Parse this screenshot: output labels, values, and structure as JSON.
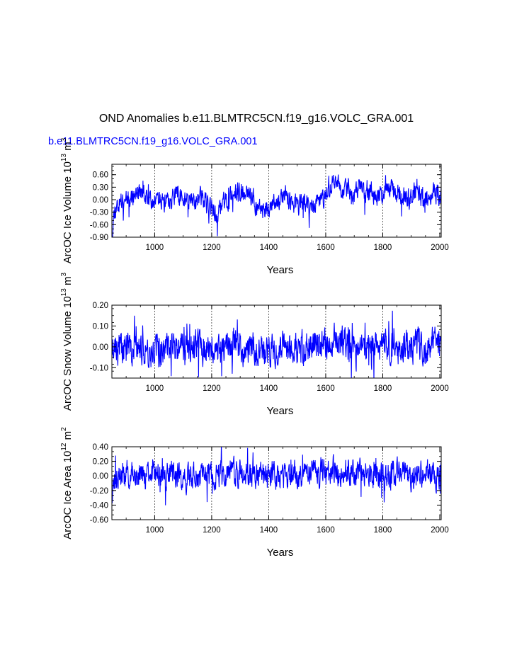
{
  "figure": {
    "title": "OND Anomalies b.e11.BLMTRC5CN.f19_g16.VOLC_GRA.001",
    "subtitle": "b.e11.BLMTRC5CN.f19_g16.VOLC_GRA.001",
    "subtitle_color": "#0000ff",
    "line_color": "#0000ff"
  },
  "chart_data": [
    {
      "type": "line",
      "name": "ice-volume",
      "ylabel": "ArcOC Ice Volume 10¹³ m³",
      "ylabel_parts": [
        "ArcOC Ice Volume 10",
        "13",
        " m",
        "3"
      ],
      "xlabel": "Years",
      "xlim": [
        850,
        2005
      ],
      "ylim": [
        -0.9,
        0.85
      ],
      "xticks": [
        1000,
        1200,
        1400,
        1600,
        1800,
        2000
      ],
      "xtick_labels": [
        "1000",
        "1200",
        "1400",
        "1600",
        "1800",
        "2000"
      ],
      "yticks": [
        -0.9,
        -0.6,
        -0.3,
        0.0,
        0.3,
        0.6
      ],
      "ytick_labels": [
        "-0.90",
        "-0.60",
        "-0.30",
        "0.00",
        "0.30",
        "0.60"
      ],
      "grid_x": [
        1000,
        1200,
        1400,
        1600,
        1800
      ],
      "anchors": [
        [
          850,
          -0.8
        ],
        [
          860,
          -0.2
        ],
        [
          880,
          -0.05
        ],
        [
          900,
          0.1
        ],
        [
          920,
          0.05
        ],
        [
          940,
          0.2
        ],
        [
          960,
          0.15
        ],
        [
          980,
          -0.05
        ],
        [
          1000,
          0.05
        ],
        [
          1020,
          0.0
        ],
        [
          1040,
          -0.1
        ],
        [
          1060,
          0.05
        ],
        [
          1080,
          0.15
        ],
        [
          1100,
          -0.05
        ],
        [
          1120,
          0.05
        ],
        [
          1140,
          0.0
        ],
        [
          1160,
          0.1
        ],
        [
          1180,
          -0.1
        ],
        [
          1200,
          -0.25
        ],
        [
          1220,
          -0.35
        ],
        [
          1240,
          -0.1
        ],
        [
          1260,
          0.0
        ],
        [
          1280,
          0.1
        ],
        [
          1300,
          0.15
        ],
        [
          1320,
          0.2
        ],
        [
          1340,
          0.1
        ],
        [
          1360,
          -0.15
        ],
        [
          1380,
          -0.25
        ],
        [
          1400,
          -0.2
        ],
        [
          1420,
          -0.1
        ],
        [
          1440,
          -0.05
        ],
        [
          1460,
          0.1
        ],
        [
          1480,
          -0.05
        ],
        [
          1500,
          -0.15
        ],
        [
          1520,
          -0.05
        ],
        [
          1540,
          -0.2
        ],
        [
          1560,
          -0.1
        ],
        [
          1580,
          -0.05
        ],
        [
          1600,
          0.1
        ],
        [
          1620,
          0.35
        ],
        [
          1640,
          0.4
        ],
        [
          1660,
          0.2
        ],
        [
          1680,
          0.25
        ],
        [
          1700,
          0.1
        ],
        [
          1720,
          0.3
        ],
        [
          1740,
          0.05
        ],
        [
          1760,
          0.2
        ],
        [
          1780,
          0.0
        ],
        [
          1800,
          0.15
        ],
        [
          1820,
          0.2
        ],
        [
          1840,
          0.3
        ],
        [
          1860,
          0.1
        ],
        [
          1880,
          0.05
        ],
        [
          1900,
          0.0
        ],
        [
          1920,
          0.3
        ],
        [
          1940,
          0.0
        ],
        [
          1960,
          0.05
        ],
        [
          1980,
          0.2
        ],
        [
          2005,
          0.05
        ]
      ],
      "noise_amplitude": 0.2,
      "seed": 11
    },
    {
      "type": "line",
      "name": "snow-volume",
      "ylabel": "ArcOC Snow Volume 10¹³ m³",
      "ylabel_parts": [
        "ArcOC Snow Volume 10",
        "13",
        " m",
        "3"
      ],
      "xlabel": "Years",
      "xlim": [
        850,
        2005
      ],
      "ylim": [
        -0.15,
        0.2
      ],
      "xticks": [
        1000,
        1200,
        1400,
        1600,
        1800,
        2000
      ],
      "xtick_labels": [
        "1000",
        "1200",
        "1400",
        "1600",
        "1800",
        "2000"
      ],
      "yticks": [
        -0.1,
        0.0,
        0.1,
        0.2
      ],
      "ytick_labels": [
        "-0.10",
        "0.00",
        "0.10",
        "0.20"
      ],
      "grid_x": [
        1000,
        1200,
        1400,
        1600,
        1800
      ],
      "anchors": [
        [
          850,
          0.0
        ],
        [
          900,
          0.0
        ],
        [
          950,
          -0.01
        ],
        [
          1000,
          -0.02
        ],
        [
          1050,
          0.0
        ],
        [
          1100,
          -0.01
        ],
        [
          1150,
          0.0
        ],
        [
          1200,
          -0.02
        ],
        [
          1250,
          0.01
        ],
        [
          1300,
          0.0
        ],
        [
          1350,
          -0.01
        ],
        [
          1400,
          -0.02
        ],
        [
          1450,
          0.0
        ],
        [
          1500,
          -0.01
        ],
        [
          1550,
          0.0
        ],
        [
          1600,
          0.02
        ],
        [
          1650,
          0.03
        ],
        [
          1700,
          0.01
        ],
        [
          1750,
          0.02
        ],
        [
          1800,
          0.01
        ],
        [
          1850,
          0.0
        ],
        [
          1900,
          0.01
        ],
        [
          1950,
          0.0
        ],
        [
          2005,
          0.01
        ]
      ],
      "noise_amplitude": 0.065,
      "seed": 23
    },
    {
      "type": "line",
      "name": "ice-area",
      "ylabel": "ArcOC Ice Area 10¹² m²",
      "ylabel_parts": [
        "ArcOC Ice Area 10",
        "12",
        " m",
        "2"
      ],
      "xlabel": "Years",
      "xlim": [
        850,
        2005
      ],
      "ylim": [
        -0.6,
        0.4
      ],
      "xticks": [
        1000,
        1200,
        1400,
        1600,
        1800,
        2000
      ],
      "xtick_labels": [
        "1000",
        "1200",
        "1400",
        "1600",
        "1800",
        "2000"
      ],
      "yticks": [
        -0.6,
        -0.4,
        -0.2,
        0.0,
        0.2,
        0.4
      ],
      "ytick_labels": [
        "-0.60",
        "-0.40",
        "-0.20",
        "0.00",
        "0.20",
        "0.40"
      ],
      "grid_x": [
        1000,
        1200,
        1400,
        1600,
        1800
      ],
      "anchors": [
        [
          850,
          -0.2
        ],
        [
          870,
          0.0
        ],
        [
          900,
          0.0
        ],
        [
          950,
          0.02
        ],
        [
          1000,
          0.0
        ],
        [
          1050,
          0.02
        ],
        [
          1100,
          0.0
        ],
        [
          1150,
          -0.03
        ],
        [
          1200,
          0.0
        ],
        [
          1250,
          0.02
        ],
        [
          1300,
          0.05
        ],
        [
          1350,
          0.02
        ],
        [
          1400,
          0.0
        ],
        [
          1450,
          0.02
        ],
        [
          1500,
          0.0
        ],
        [
          1550,
          0.03
        ],
        [
          1600,
          0.05
        ],
        [
          1650,
          0.07
        ],
        [
          1700,
          0.05
        ],
        [
          1750,
          0.04
        ],
        [
          1800,
          0.03
        ],
        [
          1850,
          0.05
        ],
        [
          1900,
          0.02
        ],
        [
          1950,
          0.03
        ],
        [
          2005,
          0.0
        ]
      ],
      "noise_amplitude": 0.16,
      "seed": 37
    }
  ]
}
